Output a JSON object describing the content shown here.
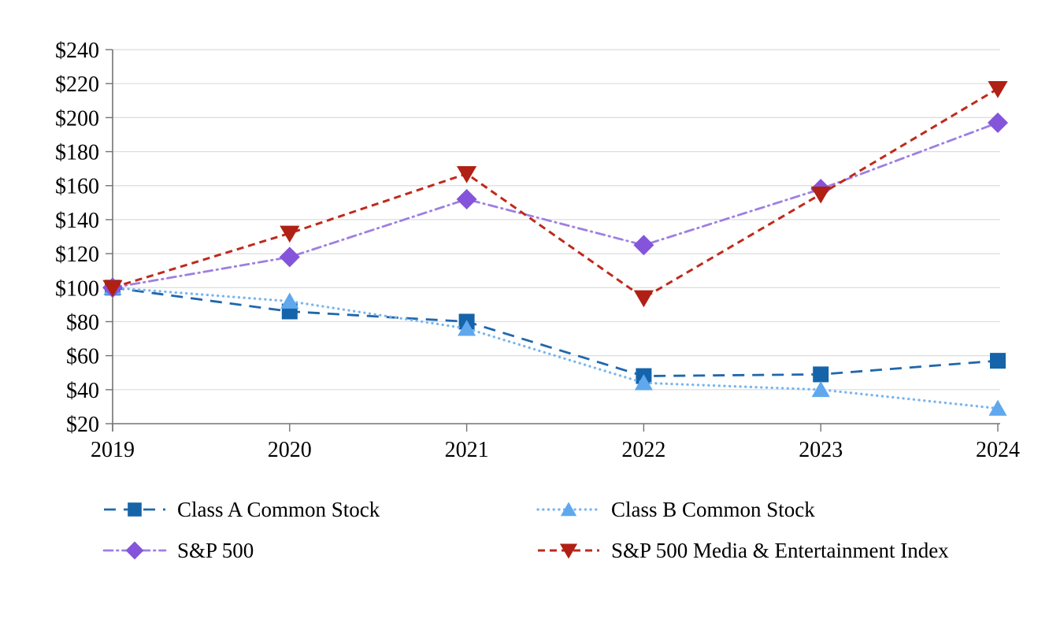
{
  "colors": {
    "background": "#FFFFFF",
    "grid": "#DCDCDC",
    "axis": "#737373",
    "text": "#000000"
  },
  "chart_data": {
    "type": "line",
    "title": "",
    "xlabel": "",
    "ylabel": "",
    "x_labels": [
      "2019",
      "2020",
      "2021",
      "2022",
      "2023",
      "2024"
    ],
    "ylim": [
      20,
      240
    ],
    "y_step": 20,
    "value_prefix": "$",
    "y_tick_labels": [
      "$20",
      "$40",
      "$60",
      "$80",
      "$100",
      "$120",
      "$140",
      "$160",
      "$180",
      "$200",
      "$220",
      "$240"
    ],
    "grid": true,
    "legend_position": "bottom-two-columns",
    "series": [
      {
        "id": "class-a",
        "name": "Class A Common Stock",
        "marker": "square",
        "marker_size": 10,
        "line_style": "long-dash",
        "line_width": 2.8,
        "color": "#1564A9",
        "line_color": "#2067AC",
        "values": [
          100,
          86,
          80,
          48,
          49,
          57
        ]
      },
      {
        "id": "class-b",
        "name": "Class B Common Stock",
        "marker": "triangle-up",
        "marker_size": 11,
        "line_style": "dot",
        "line_width": 3.2,
        "color": "#5FA8EE",
        "line_color": "#77B5EF",
        "values": [
          100,
          92,
          76,
          44,
          40,
          29
        ]
      },
      {
        "id": "sp500",
        "name": "S&P 500",
        "marker": "diamond",
        "marker_size": 13,
        "line_style": "dash-dot",
        "line_width": 2.8,
        "color": "#8455DA",
        "line_color": "#9E7FE2",
        "values": [
          100,
          118,
          152,
          125,
          158,
          197
        ]
      },
      {
        "id": "sp500-media",
        "name": "S&P 500 Media & Entertainment Index",
        "marker": "triangle-down",
        "marker_size": 12,
        "line_style": "dash",
        "line_width": 3,
        "color": "#B02015",
        "line_color": "#BE2A1C",
        "values": [
          100,
          132,
          167,
          94,
          155,
          217
        ]
      }
    ]
  }
}
